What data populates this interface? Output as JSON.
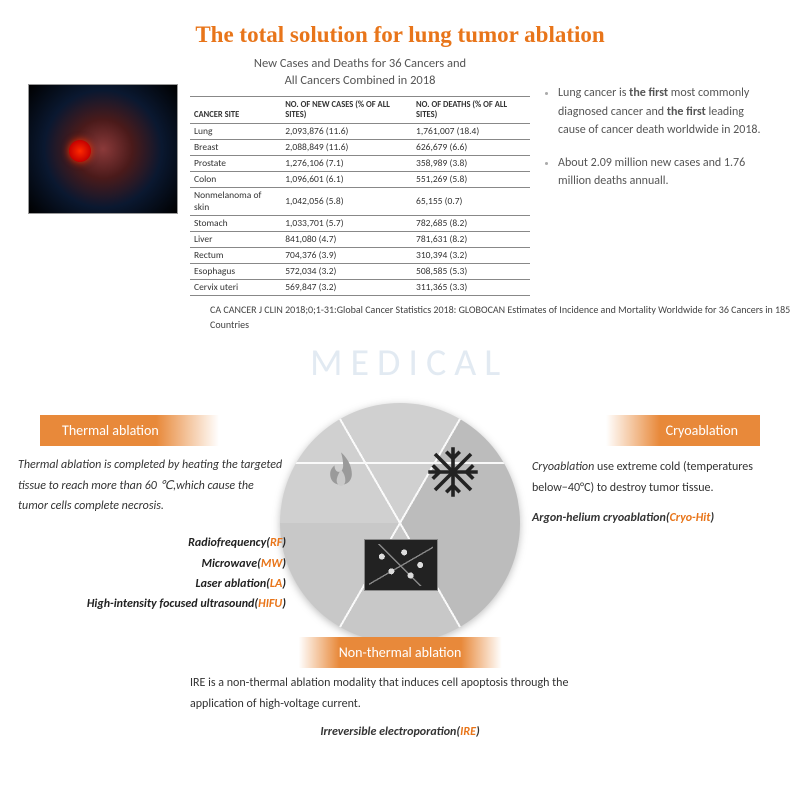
{
  "title": {
    "text": "The total solution for lung tumor ablation",
    "color": "#e8751a"
  },
  "watermark_text": "MEDICAL",
  "table": {
    "caption_line1": "New Cases and Deaths for 36 Cancers and",
    "caption_line2": "All Cancers Combined in 2018",
    "columns": [
      "CANCER SITE",
      "NO. OF NEW CASES (% OF ALL SITES)",
      "NO. OF DEATHS (% OF ALL SITES)"
    ],
    "rows": [
      [
        "Lung",
        "2,093,876 (11.6)",
        "1,761,007 (18.4)"
      ],
      [
        "Breast",
        "2,088,849 (11.6)",
        "626,679 (6.6)"
      ],
      [
        "Prostate",
        "1,276,106 (7.1)",
        "358,989 (3.8)"
      ],
      [
        "Colon",
        "1,096,601 (6.1)",
        "551,269 (5.8)"
      ],
      [
        "Nonmelanoma of skin",
        "1,042,056 (5.8)",
        "65,155 (0.7)"
      ],
      [
        "Stomach",
        "1,033,701 (5.7)",
        "782,685 (8.2)"
      ],
      [
        "Liver",
        "841,080 (4.7)",
        "781,631 (8.2)"
      ],
      [
        "Rectum",
        "704,376 (3.9)",
        "310,394 (3.2)"
      ],
      [
        "Esophagus",
        "572,034 (3.2)",
        "508,585 (5.3)"
      ],
      [
        "Cervix uteri",
        "569,847 (3.2)",
        "311,365 (3.3)"
      ]
    ]
  },
  "bullets": {
    "b1_pre": "Lung cancer is ",
    "b1_em1": "the first",
    "b1_mid": " most commonly diagnosed cancer and ",
    "b1_em2": "the first",
    "b1_post": " leading cause of cancer death worldwide in 2018.",
    "b2": "About 2.09 million new cases and 1.76 million deaths annuall."
  },
  "citation": "CA CANCER J CLIN 2018;0;1-31:Global Cancer Statistics 2018: GLOBOCAN Estimates of Incidence and Mortality Worldwide for 36 Cancers in 185 Countries",
  "pie": {
    "banner_color": "#e8893a",
    "slices": {
      "thermal": {
        "banner": "Thermal ablation",
        "desc": "Thermal ablation is completed by heating the targeted tissue to reach more than 60 ℃,which cause the tumor cells complete necrosis.",
        "methods": [
          {
            "name": "Radiofrequency",
            "abbr": "RF"
          },
          {
            "name": "Microwave",
            "abbr": "MW"
          },
          {
            "name": "Laser ablation",
            "abbr": "LA"
          },
          {
            "name": "High-intensity focused ultrasound",
            "abbr": "HIFU"
          }
        ]
      },
      "cryo": {
        "banner": "Cryoablation",
        "desc_pre": "Cryoablation",
        "desc_post": " use extreme cold (temperatures below−40°C) to destroy tumor tissue.",
        "method_name": "Argon-helium cryoablation",
        "method_abbr": "Cryo-Hit"
      },
      "nonthermal": {
        "banner": "Non-thermal ablation",
        "desc": "IRE is a non-thermal ablation modality that induces cell apoptosis through the application of high-voltage current.",
        "method_name": "Irreversible electroporation",
        "method_abbr": "IRE"
      }
    }
  }
}
